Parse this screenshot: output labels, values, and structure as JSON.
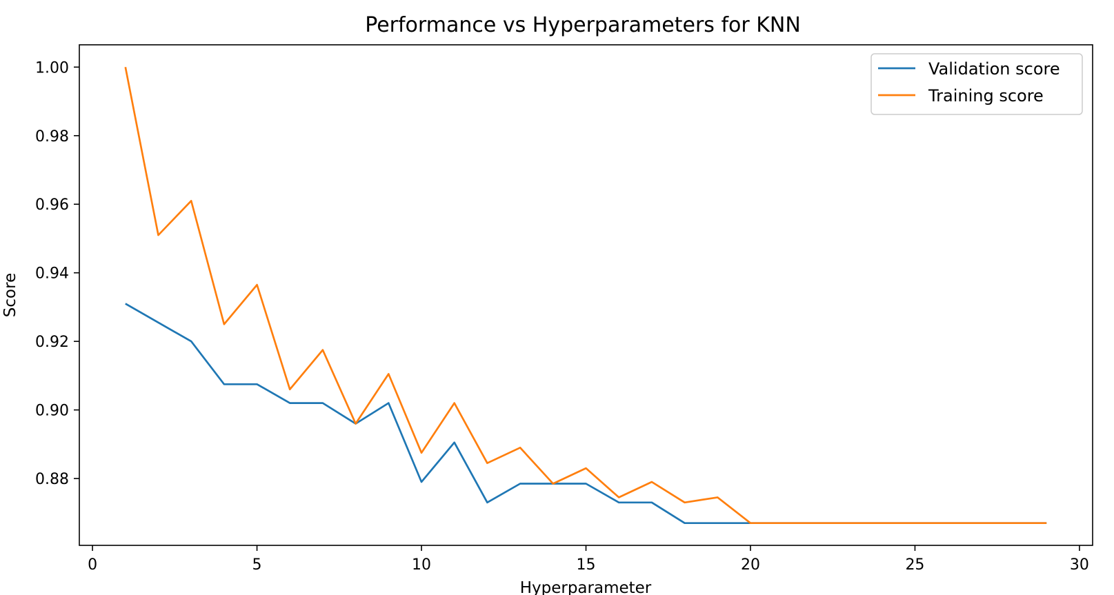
{
  "chart_data": {
    "type": "line",
    "title": "Performance vs Hyperparameters for KNN",
    "xlabel": "Hyperparameter",
    "ylabel": "Score",
    "xlim": [
      -0.4,
      30.4
    ],
    "ylim": [
      0.8605,
      1.0065
    ],
    "xticks": [
      0,
      5,
      10,
      15,
      20,
      25,
      30
    ],
    "xtick_labels": [
      "0",
      "5",
      "10",
      "15",
      "20",
      "25",
      "30"
    ],
    "yticks": [
      0.88,
      0.9,
      0.92,
      0.94,
      0.96,
      0.98,
      1.0
    ],
    "ytick_labels": [
      "0.88",
      "0.90",
      "0.92",
      "0.94",
      "0.96",
      "0.98",
      "1.00"
    ],
    "grid": false,
    "legend_position": "top-right",
    "x": [
      1,
      2,
      3,
      4,
      5,
      6,
      7,
      8,
      9,
      10,
      11,
      12,
      13,
      14,
      15,
      16,
      17,
      18,
      19,
      20,
      21,
      22,
      23,
      24,
      25,
      26,
      27,
      28,
      29
    ],
    "series": [
      {
        "name": "Validation score",
        "color": "#1f77b4",
        "values": [
          0.931,
          0.9255,
          0.92,
          0.9075,
          0.9075,
          0.902,
          0.902,
          0.896,
          0.902,
          0.879,
          0.8905,
          0.873,
          0.8785,
          0.8785,
          0.8785,
          0.873,
          0.873,
          0.867,
          0.867,
          0.867,
          0.867,
          0.867,
          0.867,
          0.867,
          0.867,
          0.867,
          0.867,
          0.867,
          0.867
        ]
      },
      {
        "name": "Training score",
        "color": "#ff7f0e",
        "values": [
          1.0,
          0.951,
          0.961,
          0.925,
          0.9365,
          0.906,
          0.9175,
          0.896,
          0.9105,
          0.8875,
          0.902,
          0.8845,
          0.889,
          0.8785,
          0.883,
          0.8745,
          0.879,
          0.873,
          0.8745,
          0.867,
          0.867,
          0.867,
          0.867,
          0.867,
          0.867,
          0.867,
          0.867,
          0.867,
          0.867
        ]
      }
    ]
  }
}
